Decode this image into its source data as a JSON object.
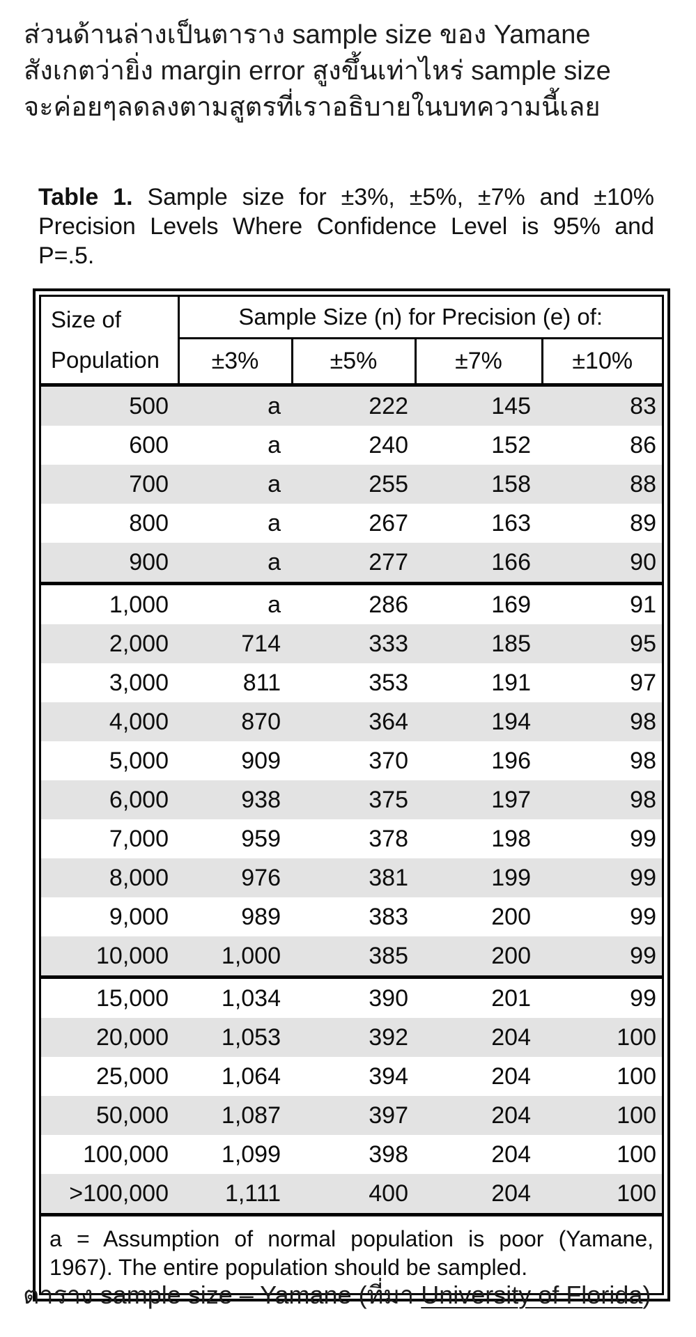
{
  "intro": {
    "lines": [
      "ส่วนด้านล่างเป็นตาราง sample size ของ Yamane",
      "สังเกตว่ายิ่ง margin error สูงขึ้นเท่าไหร่ sample size",
      "จะค่อยๆลดลงตามสูตรที่เราอธิบายในบทความนี้เลย"
    ]
  },
  "table": {
    "title": {
      "label": "Table 1.",
      "line1_rest": "Sample size for ±3%, ±5%, ±7% and ±10%",
      "line2": "Precision Levels Where Confidence Level is 95% and",
      "line3": "P=.5."
    },
    "header": {
      "population": "Size of Population",
      "span": "Sample Size (n) for Precision (e) of:",
      "precisions": [
        "±3%",
        "±5%",
        "±7%",
        "±10%"
      ]
    },
    "rows": [
      [
        "500",
        "a",
        "222",
        "145",
        "83"
      ],
      [
        "600",
        "a",
        "240",
        "152",
        "86"
      ],
      [
        "700",
        "a",
        "255",
        "158",
        "88"
      ],
      [
        "800",
        "a",
        "267",
        "163",
        "89"
      ],
      [
        "900",
        "a",
        "277",
        "166",
        "90"
      ],
      [
        "1,000",
        "a",
        "286",
        "169",
        "91"
      ],
      [
        "2,000",
        "714",
        "333",
        "185",
        "95"
      ],
      [
        "3,000",
        "811",
        "353",
        "191",
        "97"
      ],
      [
        "4,000",
        "870",
        "364",
        "194",
        "98"
      ],
      [
        "5,000",
        "909",
        "370",
        "196",
        "98"
      ],
      [
        "6,000",
        "938",
        "375",
        "197",
        "98"
      ],
      [
        "7,000",
        "959",
        "378",
        "198",
        "99"
      ],
      [
        "8,000",
        "976",
        "381",
        "199",
        "99"
      ],
      [
        "9,000",
        "989",
        "383",
        "200",
        "99"
      ],
      [
        "10,000",
        "1,000",
        "385",
        "200",
        "99"
      ],
      [
        "15,000",
        "1,034",
        "390",
        "201",
        "99"
      ],
      [
        "20,000",
        "1,053",
        "392",
        "204",
        "100"
      ],
      [
        "25,000",
        "1,064",
        "394",
        "204",
        "100"
      ],
      [
        "50,000",
        "1,087",
        "397",
        "204",
        "100"
      ],
      [
        "100,000",
        "1,099",
        "398",
        "204",
        "100"
      ],
      [
        ">100,000",
        "1,111",
        "400",
        "204",
        "100"
      ]
    ],
    "group_starts": [
      0,
      5,
      15
    ],
    "footnote_lines": [
      "a = Assumption of normal population is poor (Yamane,",
      "1967).  The entire population should be sampled."
    ]
  },
  "caption": {
    "prefix": "ตาราง sample size – Yamane (ที่มา ",
    "link": "University of Florida",
    "suffix": ")"
  },
  "colors": {
    "row_shaded": "#e3e3e3",
    "border": "#000000",
    "text": "#131313"
  }
}
